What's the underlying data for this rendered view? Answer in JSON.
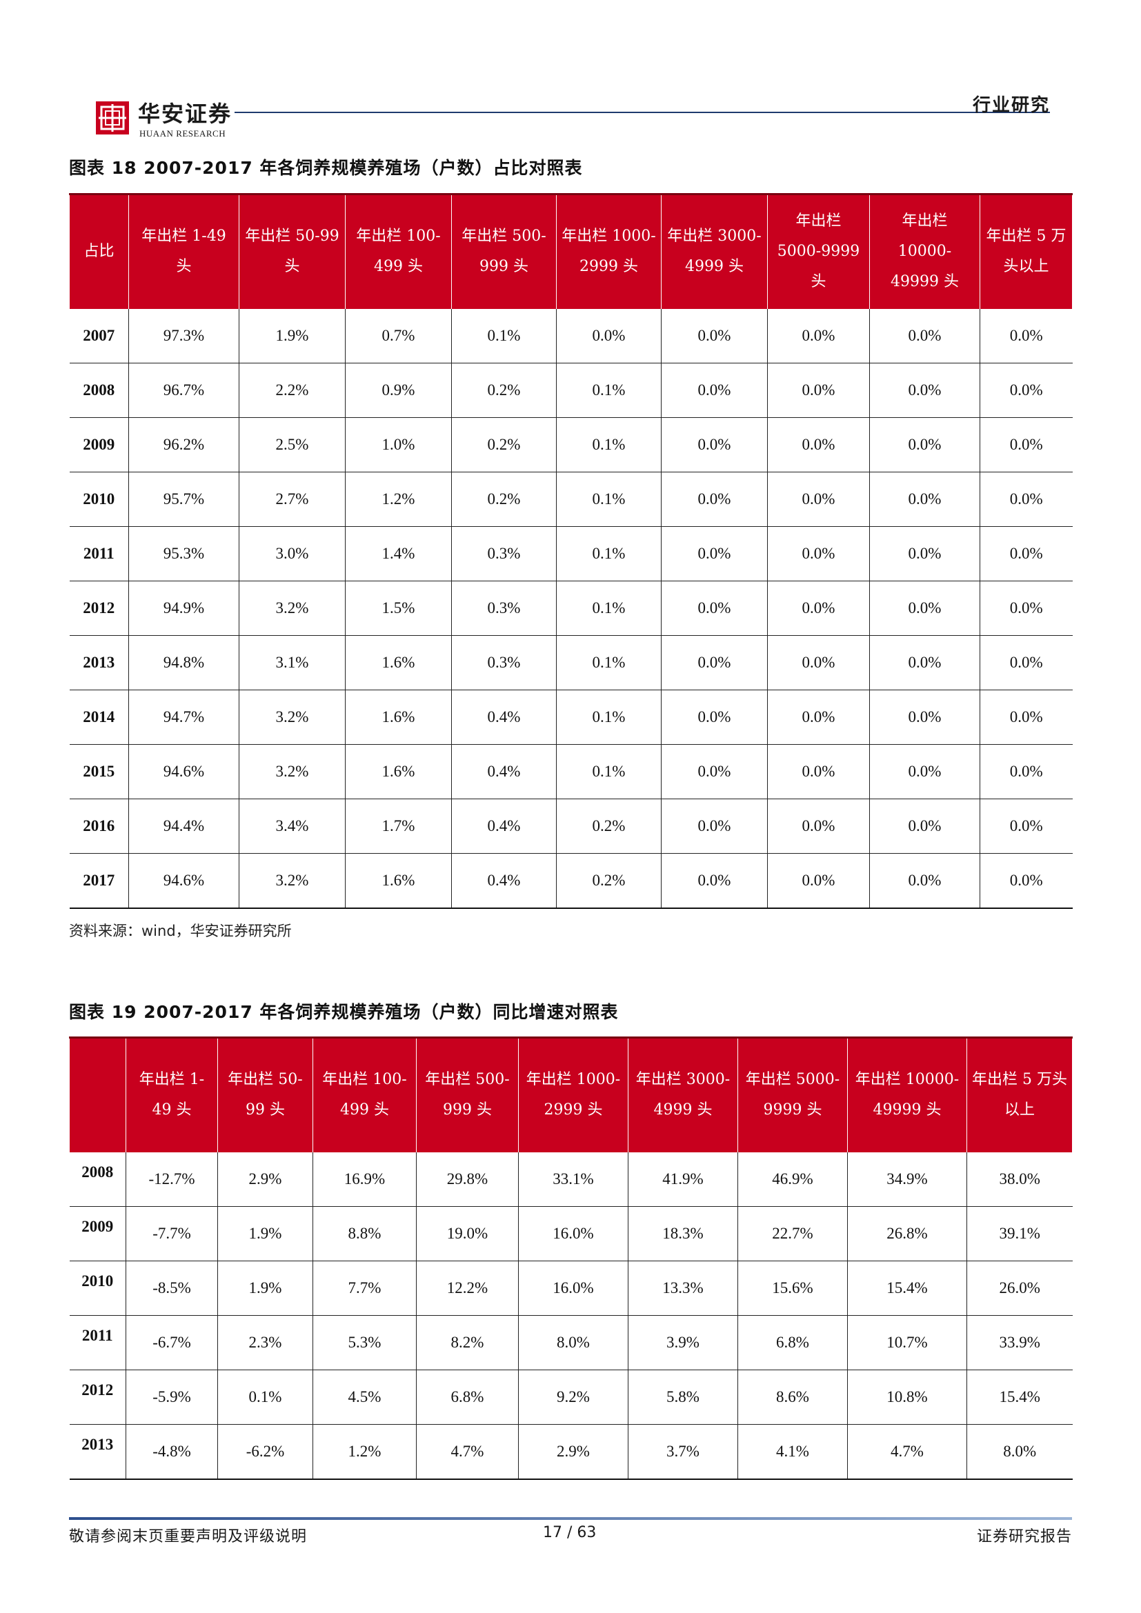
{
  "header": {
    "logo_text_cn": "华安证券",
    "logo_text_en": "HUAAN RESEARCH",
    "section_label": "行业研究"
  },
  "table18": {
    "title": "图表 18 2007-2017 年各饲养规模养殖场（户数）占比对照表",
    "headers": [
      "占比",
      "年出栏 1-49 头",
      "年出栏 50-99 头",
      "年出栏 100-499 头",
      "年出栏 500-999 头",
      "年出栏 1000-2999 头",
      "年出栏 3000-4999 头",
      "年出栏 5000-9999 头",
      "年出栏 10000-49999 头",
      "年出栏 5 万头以上"
    ],
    "rows": [
      [
        "2007",
        "97.3%",
        "1.9%",
        "0.7%",
        "0.1%",
        "0.0%",
        "0.0%",
        "0.0%",
        "0.0%",
        "0.0%"
      ],
      [
        "2008",
        "96.7%",
        "2.2%",
        "0.9%",
        "0.2%",
        "0.1%",
        "0.0%",
        "0.0%",
        "0.0%",
        "0.0%"
      ],
      [
        "2009",
        "96.2%",
        "2.5%",
        "1.0%",
        "0.2%",
        "0.1%",
        "0.0%",
        "0.0%",
        "0.0%",
        "0.0%"
      ],
      [
        "2010",
        "95.7%",
        "2.7%",
        "1.2%",
        "0.2%",
        "0.1%",
        "0.0%",
        "0.0%",
        "0.0%",
        "0.0%"
      ],
      [
        "2011",
        "95.3%",
        "3.0%",
        "1.4%",
        "0.3%",
        "0.1%",
        "0.0%",
        "0.0%",
        "0.0%",
        "0.0%"
      ],
      [
        "2012",
        "94.9%",
        "3.2%",
        "1.5%",
        "0.3%",
        "0.1%",
        "0.0%",
        "0.0%",
        "0.0%",
        "0.0%"
      ],
      [
        "2013",
        "94.8%",
        "3.1%",
        "1.6%",
        "0.3%",
        "0.1%",
        "0.0%",
        "0.0%",
        "0.0%",
        "0.0%"
      ],
      [
        "2014",
        "94.7%",
        "3.2%",
        "1.6%",
        "0.4%",
        "0.1%",
        "0.0%",
        "0.0%",
        "0.0%",
        "0.0%"
      ],
      [
        "2015",
        "94.6%",
        "3.2%",
        "1.6%",
        "0.4%",
        "0.1%",
        "0.0%",
        "0.0%",
        "0.0%",
        "0.0%"
      ],
      [
        "2016",
        "94.4%",
        "3.4%",
        "1.7%",
        "0.4%",
        "0.2%",
        "0.0%",
        "0.0%",
        "0.0%",
        "0.0%"
      ],
      [
        "2017",
        "94.6%",
        "3.2%",
        "1.6%",
        "0.4%",
        "0.2%",
        "0.0%",
        "0.0%",
        "0.0%",
        "0.0%"
      ]
    ],
    "source": "资料来源：wind，华安证券研究所"
  },
  "table19": {
    "title": "图表 19 2007-2017 年各饲养规模养殖场（户数）同比增速对照表",
    "headers": [
      "",
      "年出栏 1-49 头",
      "年出栏 50-99 头",
      "年出栏 100-499 头",
      "年出栏 500-999 头",
      "年出栏 1000-2999 头",
      "年出栏 3000-4999 头",
      "年出栏 5000-9999 头",
      "年出栏 10000-49999 头",
      "年出栏 5 万头以上"
    ],
    "rows": [
      [
        "2008",
        "-12.7%",
        "2.9%",
        "16.9%",
        "29.8%",
        "33.1%",
        "41.9%",
        "46.9%",
        "34.9%",
        "38.0%"
      ],
      [
        "2009",
        "-7.7%",
        "1.9%",
        "8.8%",
        "19.0%",
        "16.0%",
        "18.3%",
        "22.7%",
        "26.8%",
        "39.1%"
      ],
      [
        "2010",
        "-8.5%",
        "1.9%",
        "7.7%",
        "12.2%",
        "16.0%",
        "13.3%",
        "15.6%",
        "15.4%",
        "26.0%"
      ],
      [
        "2011",
        "-6.7%",
        "2.3%",
        "5.3%",
        "8.2%",
        "8.0%",
        "3.9%",
        "6.8%",
        "10.7%",
        "33.9%"
      ],
      [
        "2012",
        "-5.9%",
        "0.1%",
        "4.5%",
        "6.8%",
        "9.2%",
        "5.8%",
        "8.6%",
        "10.8%",
        "15.4%"
      ],
      [
        "2013",
        "-4.8%",
        "-6.2%",
        "1.2%",
        "4.7%",
        "2.9%",
        "3.7%",
        "4.1%",
        "4.7%",
        "8.0%"
      ]
    ]
  },
  "footer": {
    "disclaimer": "敬请参阅末页重要声明及评级说明",
    "page": "17 / 63",
    "report_type": "证券研究报告"
  },
  "colors": {
    "header_red": "#c8001e",
    "rule_blue": "#1f3a6e"
  }
}
